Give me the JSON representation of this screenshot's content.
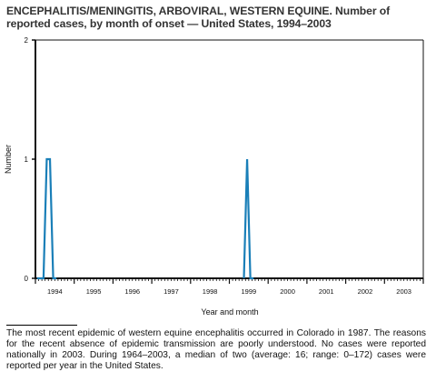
{
  "title": "ENCEPHALITIS/MENINGITIS, ARBOVIRAL, WESTERN EQUINE. Number of reported cases, by month of onset — United States, 1994–2003",
  "footnote": "The most recent epidemic of western equine encephalitis occurred in Colorado in 1987. The reasons for the recent absence of epidemic transmission are poorly understood. No cases were reported nationally in 2003. During 1964–2003, a median of two (average: 16; range: 0–172) cases were reported per year in the United States.",
  "colors": {
    "series": "#1a7fb8",
    "axis": "#111111"
  },
  "chart_data": {
    "type": "line",
    "xlabel": "Year and month",
    "ylabel": "Number",
    "ylim": [
      0,
      2
    ],
    "yticks": [
      0,
      1,
      2
    ],
    "xticks": [
      "1994",
      "1995",
      "1996",
      "1997",
      "1998",
      "1999",
      "2000",
      "2001",
      "2002",
      "2003"
    ],
    "xrange": [
      "1994-01",
      "2003-12"
    ],
    "grid": false,
    "series": [
      {
        "points": [
          {
            "x": "1994-01",
            "y": 0
          },
          {
            "x": "1994-02",
            "y": 0
          },
          {
            "x": "1994-03",
            "y": 0
          },
          {
            "x": "1994-04",
            "y": 1
          },
          {
            "x": "1994-05",
            "y": 1
          },
          {
            "x": "1994-06",
            "y": 0
          },
          {
            "x": "1994-07",
            "y": 0
          },
          {
            "x": "1999-05",
            "y": 0
          },
          {
            "x": "1999-06",
            "y": 1
          },
          {
            "x": "1999-07",
            "y": 0
          },
          {
            "x": "1999-08",
            "y": 0
          }
        ]
      }
    ]
  }
}
